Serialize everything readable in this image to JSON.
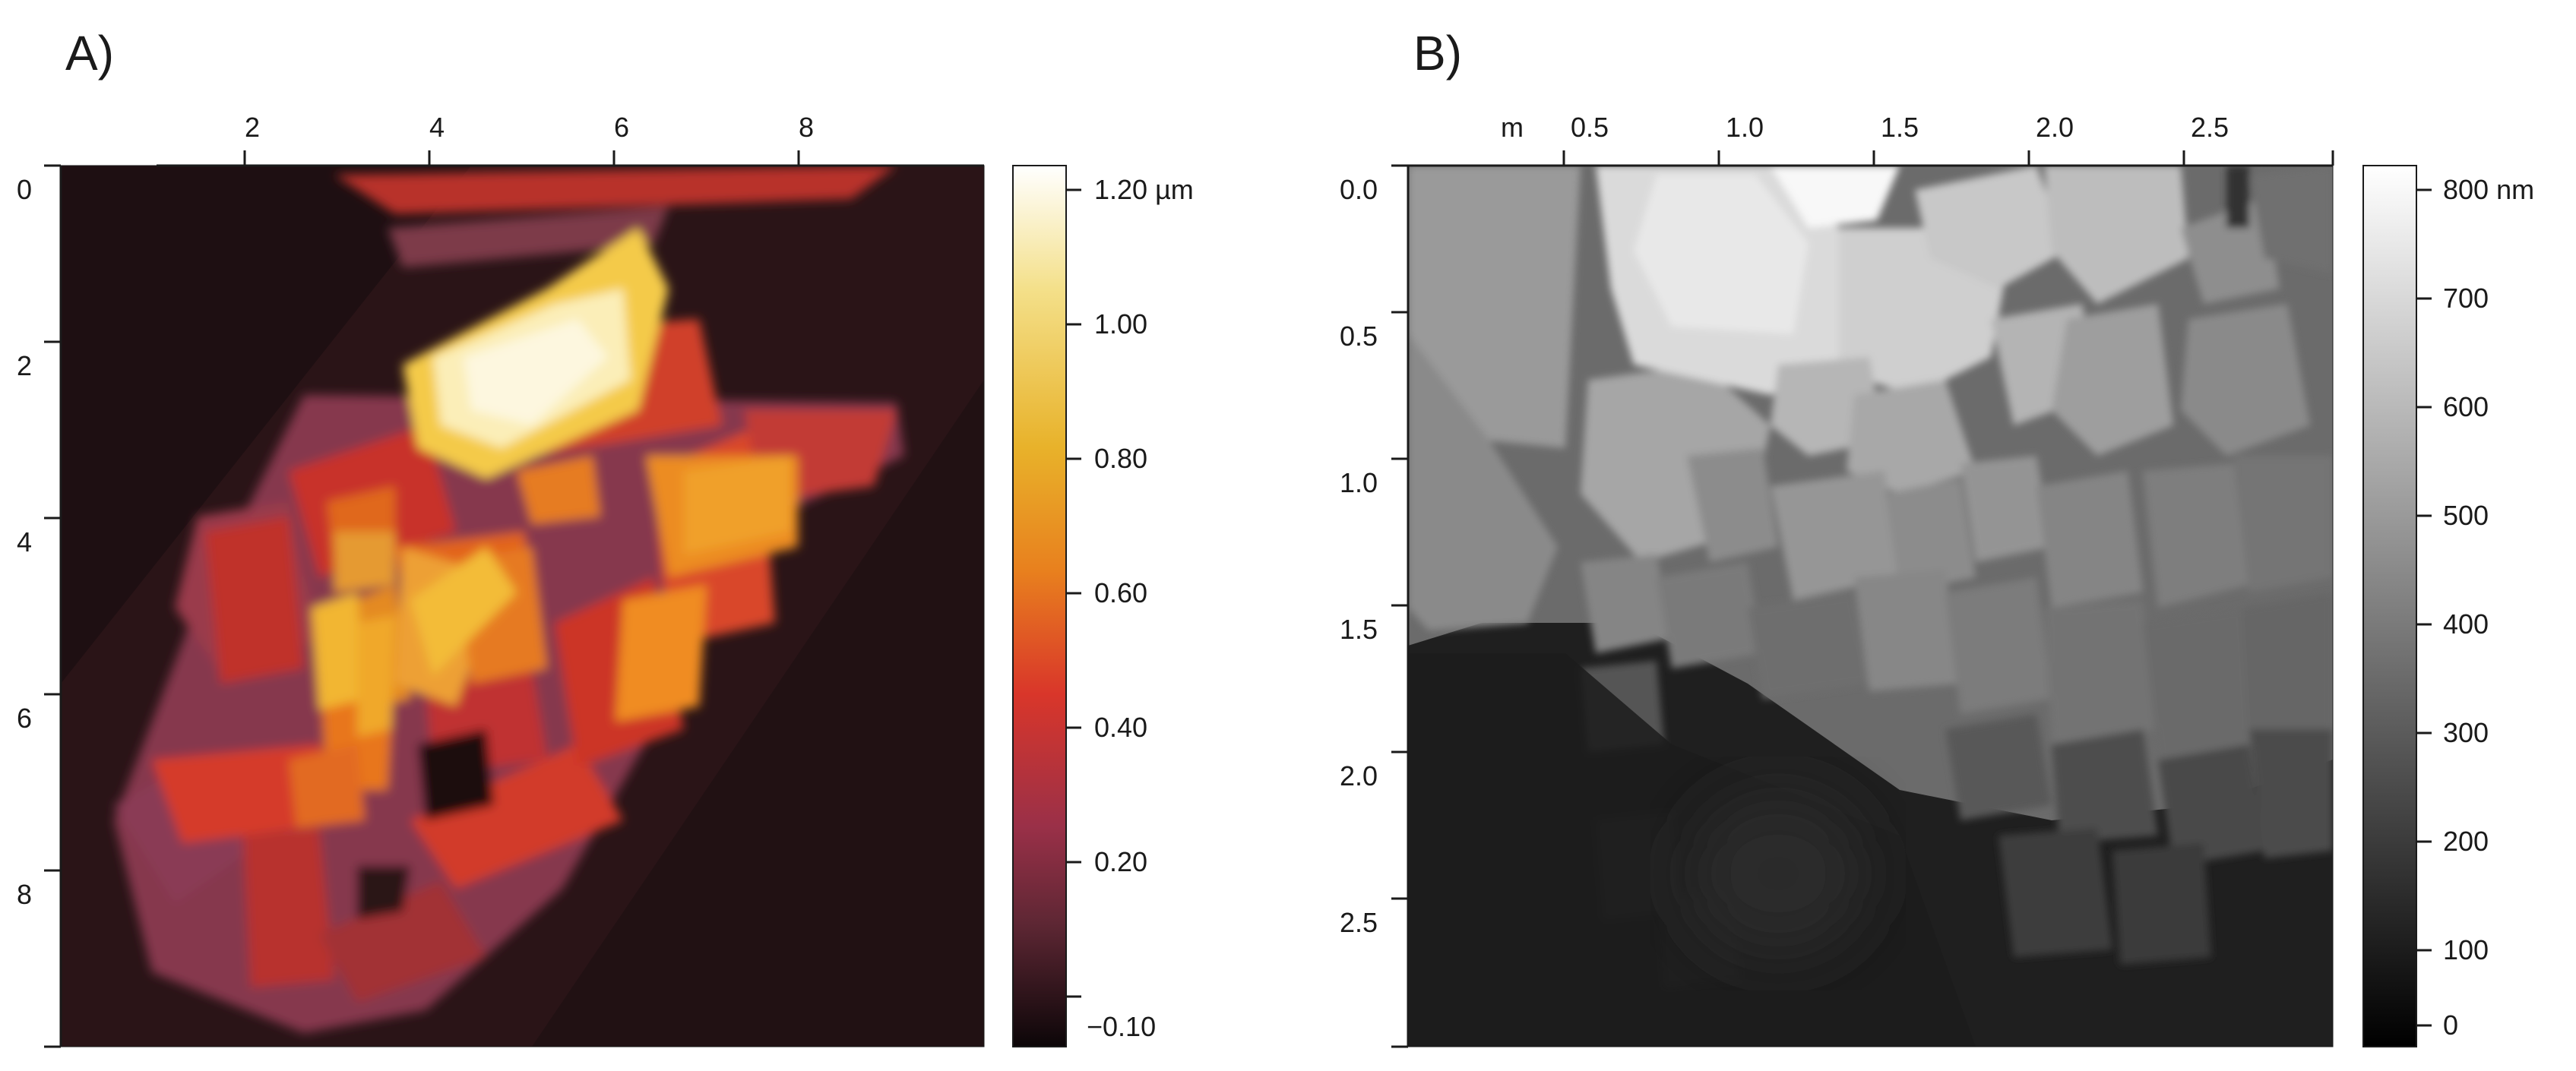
{
  "panels": [
    {
      "label": "A)",
      "x_ticks": [
        "2",
        "4",
        "6",
        "8"
      ],
      "y_ticks": [
        "0",
        "2",
        "4",
        "6",
        "8"
      ],
      "x_unit_label": "",
      "colorbar": {
        "palette": "afm-hot",
        "ticks": [
          "1.20 µm",
          "1.00",
          "0.80",
          "0.60",
          "0.40",
          "0.20",
          "−0.10"
        ],
        "colors": [
          "#ffffff",
          "#f4e08a",
          "#e8b22a",
          "#e8801e",
          "#d9362a",
          "#9a3048",
          "#5e2734",
          "#0c0608"
        ]
      }
    },
    {
      "label": "B)",
      "x_ticks": [
        "0.5",
        "1.0",
        "1.5",
        "2.0",
        "2.5"
      ],
      "y_ticks": [
        "0.0",
        "0.5",
        "1.0",
        "1.5",
        "2.0",
        "2.5"
      ],
      "x_unit_label": "m",
      "colorbar": {
        "palette": "grayscale",
        "ticks": [
          "800 nm",
          "700",
          "600",
          "500",
          "400",
          "300",
          "200",
          "100",
          "0"
        ],
        "colors": [
          "#ffffff",
          "#000000"
        ]
      }
    }
  ]
}
